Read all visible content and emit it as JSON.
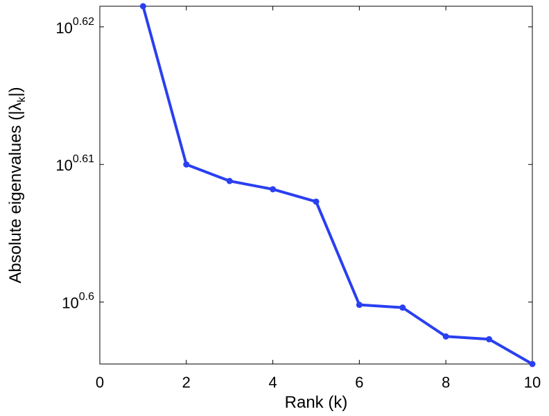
{
  "chart_data": {
    "type": "line",
    "xlabel": "Rank (k)",
    "ylabel_prefix": "Absolute eigenvalues (|λ",
    "ylabel_sub": "k",
    "ylabel_suffix": "|)",
    "xlim": [
      0,
      10
    ],
    "ylim_exponent": [
      0.5955,
      0.6215
    ],
    "y_scale": "log10",
    "grid": false,
    "xticks": [
      0,
      2,
      4,
      6,
      8,
      10
    ],
    "yticks": [
      {
        "base": "10",
        "exp": "0.6",
        "value": 0.6
      },
      {
        "base": "10",
        "exp": "0.61",
        "value": 0.61
      },
      {
        "base": "10",
        "exp": "0.62",
        "value": 0.62
      }
    ],
    "series": [
      {
        "color": "#2a3ff0",
        "x": [
          1,
          2,
          3,
          4,
          5,
          6,
          7,
          8,
          9,
          10
        ],
        "y_exponent": [
          0.6215,
          0.61,
          0.6088,
          0.6082,
          0.6073,
          0.5998,
          0.5996,
          0.5975,
          0.5973,
          0.5955
        ]
      }
    ]
  }
}
